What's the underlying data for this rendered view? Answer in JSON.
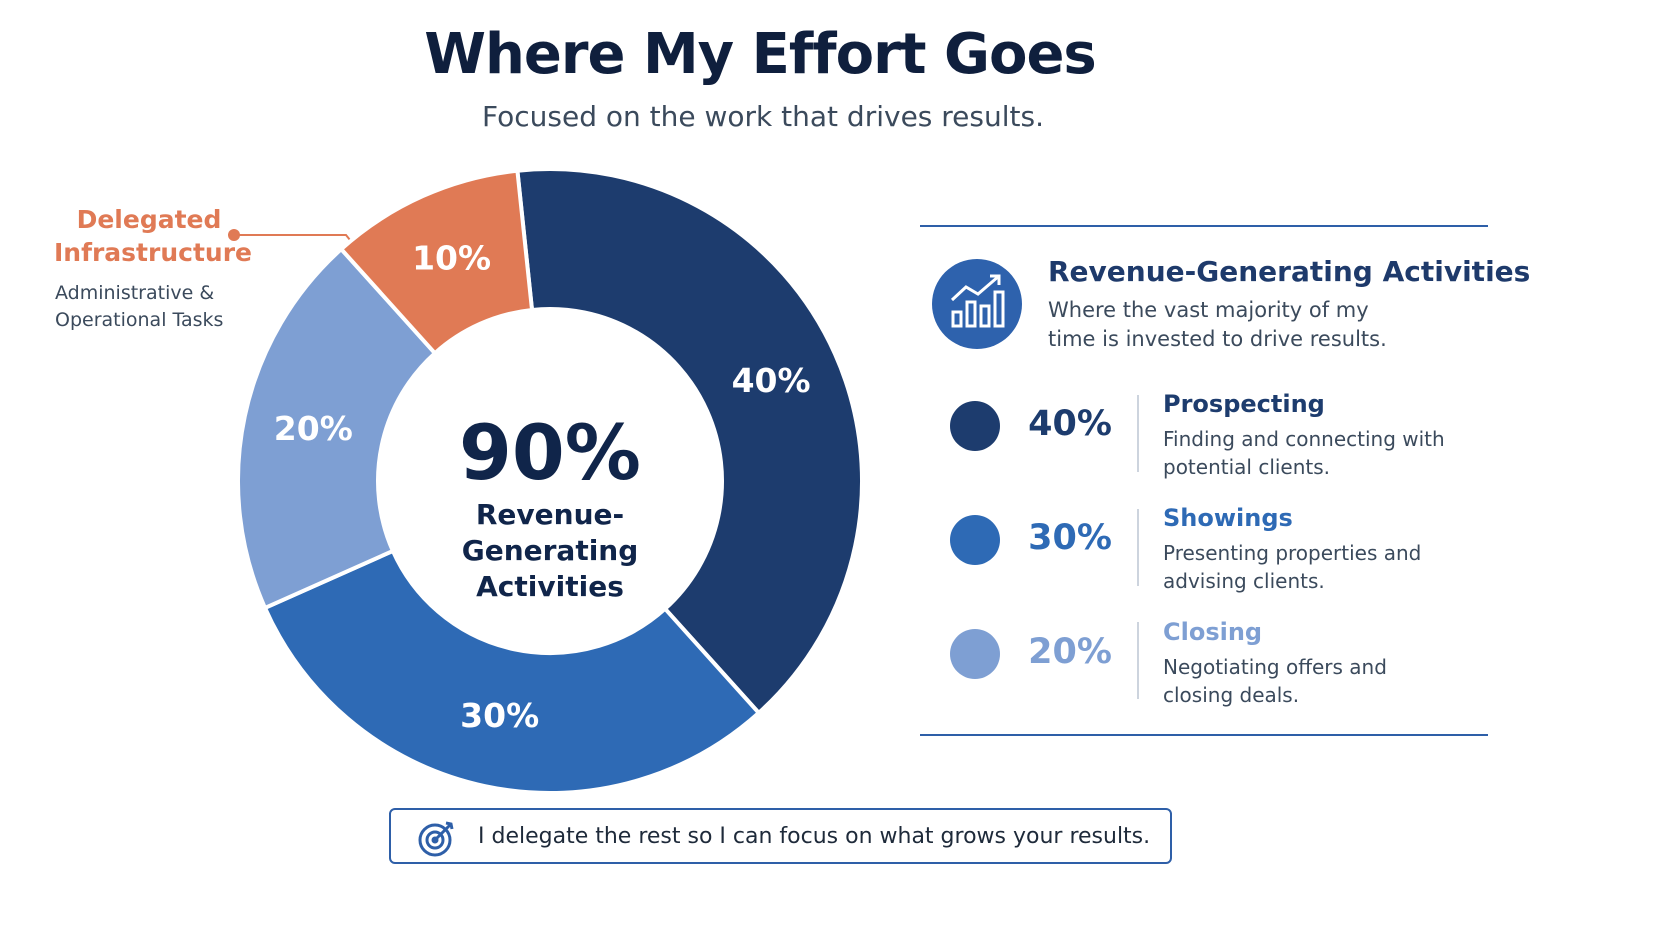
{
  "title": "Where My Effort Goes",
  "subtitle": "Focused on the work that drives results.",
  "chart_data": {
    "type": "donut",
    "categories": [
      "Prospecting",
      "Showings",
      "Closing",
      "Delegated Infrastructure"
    ],
    "values": [
      40,
      30,
      20,
      10
    ],
    "value_labels": [
      "40%",
      "30%",
      "20%",
      "10%"
    ],
    "colors": [
      "#1d3c6e",
      "#2e6ab5",
      "#7e9fd3",
      "#e07a55"
    ],
    "descriptions": [
      "Finding and connecting with potential clients.",
      "Presenting properties and advising clients.",
      "Negotiating offers and closing deals.",
      "Administrative & Operational Tasks"
    ],
    "center": {
      "value": 90,
      "label": "90%",
      "text": "Revenue-Generating Activities"
    }
  },
  "panel": {
    "title": "Revenue-Generating Activities",
    "text": "Where the vast majority of my time is invested to drive results."
  },
  "footer": "I delegate the rest so I can focus on what grows your results."
}
